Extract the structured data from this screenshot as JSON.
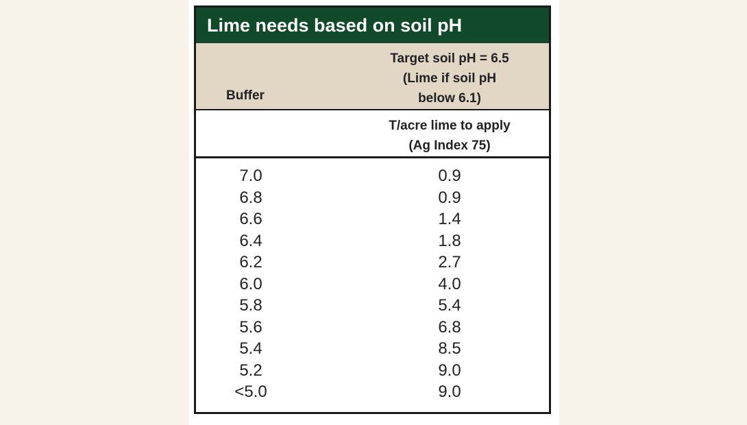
{
  "table": {
    "title": "Lime needs based on soil pH",
    "header": {
      "buffer_label": "Buffer",
      "target_lines": [
        "Target soil pH = 6.5",
        "(Lime if soil pH",
        "below 6.1)"
      ],
      "unit_lines": [
        "T/acre lime to apply",
        "(Ag Index 75)"
      ]
    },
    "rows": [
      {
        "buffer": "7.0",
        "lime": "0.9"
      },
      {
        "buffer": "6.8",
        "lime": "0.9"
      },
      {
        "buffer": "6.6",
        "lime": "1.4"
      },
      {
        "buffer": "6.4",
        "lime": "1.8"
      },
      {
        "buffer": "6.2",
        "lime": "2.7"
      },
      {
        "buffer": "6.0",
        "lime": "4.0"
      },
      {
        "buffer": "5.8",
        "lime": "5.4"
      },
      {
        "buffer": "5.6",
        "lime": "6.8"
      },
      {
        "buffer": "5.4",
        "lime": "8.5"
      },
      {
        "buffer": "5.2",
        "lime": "9.0"
      },
      {
        "buffer": "<5.0",
        "lime": "9.0"
      }
    ]
  },
  "colors": {
    "title_background": "#114a2b",
    "header_background": "#e2d6c5",
    "page_background": "#f8f3e8"
  }
}
